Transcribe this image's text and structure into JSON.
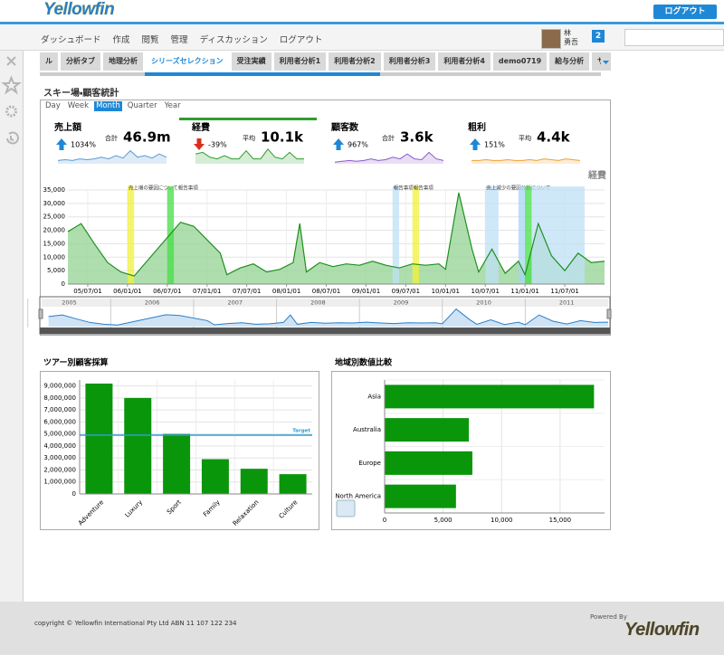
{
  "header": {
    "logo": "Yellowfin",
    "logout_button": "ログアウト"
  },
  "nav": {
    "items": [
      "ダッシュボード",
      "作成",
      "閲覧",
      "管理",
      "ディスカッション",
      "ログアウト"
    ],
    "user_family": "林",
    "user_given": "勇吾",
    "notifications": 2
  },
  "tabs": {
    "items": [
      "ル",
      "分析タブ",
      "地理分析",
      "シリーズセレクション",
      "受注実績",
      "利用者分析1",
      "利用者分析2",
      "利用者分析3",
      "利用者分析4",
      "demo0719",
      "給与分析",
      "サンプル"
    ],
    "active": 3
  },
  "report": {
    "title": "スキー場・顧客統計",
    "periods": [
      "Day",
      "Week",
      "Month",
      "Quarter",
      "Year"
    ],
    "active_period": 2,
    "active_kpi": 1,
    "kpis": [
      {
        "name": "売上額",
        "direction": "up",
        "change": "1034%",
        "stat": "合計",
        "value": "46.9m",
        "color": "#5b9bd5",
        "ylim": [
          0,
          10
        ],
        "trend": [
          2,
          2.5,
          2,
          3,
          2.5,
          3,
          4,
          3,
          5,
          3.5,
          8,
          4,
          5,
          3.5,
          6,
          4
        ]
      },
      {
        "name": "経費",
        "direction": "down",
        "change": "-39%",
        "stat": "平均",
        "value": "10.1k",
        "color": "#2e9e2e",
        "ylim": [
          0,
          10
        ],
        "trend": [
          6,
          7,
          4,
          3,
          5,
          3,
          3,
          8,
          3,
          3,
          9,
          4,
          3,
          7,
          3,
          3
        ]
      },
      {
        "name": "顧客数",
        "direction": "up",
        "change": "967%",
        "stat": "合計",
        "value": "3.6k",
        "color": "#8a5ac8",
        "ylim": [
          0,
          10
        ],
        "trend": [
          1,
          1.5,
          2,
          1.5,
          2,
          3,
          2,
          2.5,
          4,
          3,
          6,
          3,
          2.5,
          7,
          3,
          2
        ]
      },
      {
        "name": "粗利",
        "direction": "up",
        "change": "151%",
        "stat": "平均",
        "value": "4.4k",
        "color": "#f0a030",
        "ylim": [
          0,
          10
        ],
        "trend": [
          2,
          2,
          2.5,
          2,
          2,
          2.5,
          2,
          2,
          2.5,
          2,
          3,
          2.5,
          2,
          3,
          2.5,
          2
        ]
      }
    ]
  },
  "chart_data": [
    {
      "type": "area",
      "title": "経費",
      "color": "#1f8f1f",
      "fill": "#93d393",
      "xlim": [
        "05/04/01",
        "12/01/01"
      ],
      "x": [
        "05/04/01",
        "05/06/01",
        "05/08/01",
        "05/10/01",
        "05/12/01",
        "06/02/01",
        "06/09/01",
        "06/11/01",
        "07/03/01",
        "07/04/01",
        "07/06/01",
        "07/08/01",
        "07/10/01",
        "07/12/01",
        "08/02/01",
        "08/03/01",
        "08/04/01",
        "08/06/01",
        "08/08/01",
        "08/10/01",
        "08/12/01",
        "09/02/01",
        "09/04/01",
        "09/06/01",
        "09/08/01",
        "09/10/01",
        "09/12/01",
        "10/01/01",
        "10/03/01",
        "10/05/01",
        "10/06/01",
        "10/08/01",
        "10/10/01",
        "10/12/01",
        "11/01/01",
        "11/03/01",
        "11/05/01",
        "11/07/01",
        "11/09/01",
        "11/11/01",
        "12/01/01"
      ],
      "values": [
        19500,
        22500,
        15000,
        8000,
        4500,
        3000,
        23000,
        21500,
        11500,
        3500,
        6000,
        7500,
        4500,
        5500,
        8000,
        22500,
        4500,
        8000,
        6500,
        7500,
        7000,
        8500,
        7000,
        6000,
        7500,
        7000,
        7500,
        5500,
        34000,
        13000,
        4500,
        13000,
        4000,
        8500,
        3500,
        22500,
        10500,
        5000,
        11500,
        8000,
        8500
      ],
      "ylim": [
        0,
        35000
      ],
      "yticks": [
        0,
        {
          "value": 5000,
          "label": "5,000"
        },
        {
          "value": 10000,
          "label": "10,000"
        },
        {
          "value": 15000,
          "label": "15,000"
        },
        {
          "value": 20000,
          "label": "20,000"
        },
        {
          "value": 25000,
          "label": "25,000"
        },
        {
          "value": 30000,
          "label": "30,000"
        },
        {
          "value": 35000,
          "label": "35,000"
        }
      ],
      "xticks": [
        "05/07/01",
        "06/01/01",
        "06/07/01",
        "07/01/01",
        "07/07/01",
        "08/01/01",
        "08/07/01",
        "09/01/01",
        "09/07/01",
        "10/01/01",
        "10/07/01",
        "11/01/01",
        "11/07/01"
      ],
      "grid": true,
      "annotations": [
        {
          "start": "06/01/01",
          "end": "06/02/01",
          "color": "#f2f23a",
          "label": "売上増の要因について報告事項"
        },
        {
          "start": "06/07/01",
          "end": "06/08/01",
          "color": "#44dd44"
        },
        {
          "start": "09/05/01",
          "end": "09/06/01",
          "color": "#bfe0f5",
          "label": "報告事項"
        },
        {
          "start": "09/08/01",
          "end": "09/09/01",
          "color": "#f2f23a",
          "label": "報告事項"
        },
        {
          "start": "10/07/01",
          "end": "10/09/01",
          "color": "#bfe0f5",
          "label": "売上減少の要因分析について"
        },
        {
          "start": "10/12/01",
          "end": "11/01/01",
          "color": "#a8d4f2"
        },
        {
          "start": "11/01/01",
          "end": "11/02/01",
          "color": "#44dd44"
        },
        {
          "start": "11/02/01",
          "end": "11/10/01",
          "color": "#bfe0f5"
        }
      ],
      "navigator_xlim": [
        "05/03/01",
        "12/01/01"
      ],
      "navigator_years": [
        "2005",
        "2006",
        "2007",
        "2008",
        "2009",
        "2010",
        "2011"
      ]
    },
    {
      "type": "bar",
      "title": "ツアー別顧客採算",
      "color": "#0a960a",
      "categories": [
        "Adventure",
        "Luxury",
        "Sport",
        "Family",
        "Relaxation",
        "Culture"
      ],
      "values": [
        9200000,
        8000000,
        5000000,
        2900000,
        2100000,
        1650000
      ],
      "ylim": [
        0,
        9500000
      ],
      "yticks": [
        0,
        {
          "value": 1000000,
          "label": "1,000,000"
        },
        {
          "value": 2000000,
          "label": "2,000,000"
        },
        {
          "value": 3000000,
          "label": "3,000,000"
        },
        {
          "value": 4000000,
          "label": "4,000,000"
        },
        {
          "value": 5000000,
          "label": "5,000,000"
        },
        {
          "value": 6000000,
          "label": "6,000,000"
        },
        {
          "value": 7000000,
          "label": "7,000,000"
        },
        {
          "value": 8000000,
          "label": "8,000,000"
        },
        {
          "value": 9000000,
          "label": "9,000,000"
        }
      ],
      "target": {
        "value": 4900000,
        "label": "Target",
        "color": "#2e9bd6"
      },
      "grid": true
    },
    {
      "type": "hbar",
      "title": "地域別数値比較",
      "color": "#0a960a",
      "categories": [
        "Asia",
        "Australia",
        "Europe",
        "North America"
      ],
      "values": [
        17900,
        7200,
        7500,
        6100
      ],
      "xlim": [
        0,
        18800
      ],
      "xticks": [
        0,
        {
          "value": 5000,
          "label": "5,000"
        },
        {
          "value": 10000,
          "label": "10,000"
        },
        {
          "value": 15000,
          "label": "15,000"
        }
      ],
      "grid": true
    }
  ],
  "footer": {
    "copyright": "copyright © Yellowfin International Pty Ltd ABN 11 107 122 234",
    "powered_by": "Powered By",
    "logo": "Yellowfin"
  }
}
